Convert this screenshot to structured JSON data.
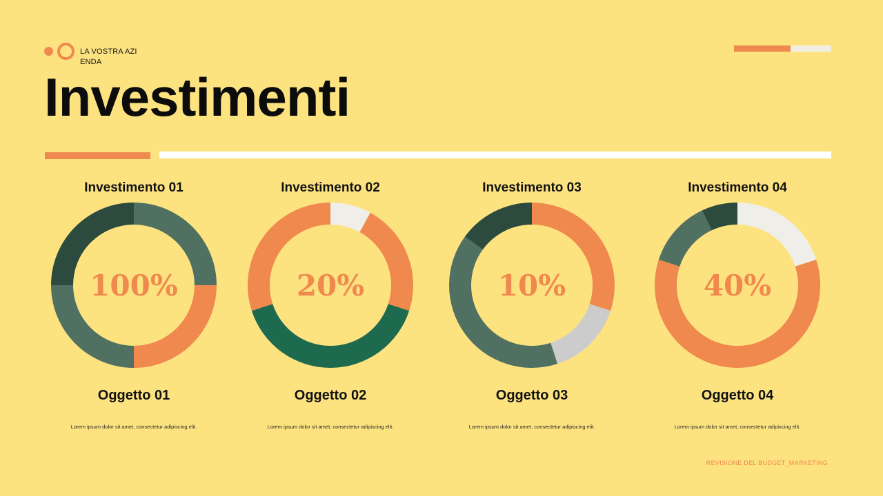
{
  "header": {
    "company": "LA VOSTRA AZIENDA",
    "title": "Investimenti"
  },
  "footer": {
    "text": "REVISIONE DEL BUDGET_MARKETING"
  },
  "colors": {
    "background": "#FDE380",
    "orange": "#F0894D",
    "dark_green": "#2D4A3E",
    "sage_green": "#507062",
    "emerald": "#1E6A4E",
    "light_gray": "#F0EEE8",
    "gray": "#CCCCCC"
  },
  "chart_data": [
    {
      "type": "pie",
      "title": "Investimento 01",
      "center_label": "100%",
      "item_label": "Oggetto 01",
      "description": "Lorem ipsum dolor sit amet, consectetur adipiscing elit.",
      "slices": [
        {
          "value": 25,
          "color": "#507062"
        },
        {
          "value": 25,
          "color": "#F0894D"
        },
        {
          "value": 25,
          "color": "#507062"
        },
        {
          "value": 25,
          "color": "#2D4A3E"
        }
      ]
    },
    {
      "type": "pie",
      "title": "Investimento 02",
      "center_label": "20%",
      "item_label": "Oggetto 02",
      "description": "Lorem ipsum dolor sit amet, consectetur adipiscing elit.",
      "slices": [
        {
          "value": 8,
          "color": "#F0EEE8"
        },
        {
          "value": 22,
          "color": "#F0894D"
        },
        {
          "value": 40,
          "color": "#1E6A4E"
        },
        {
          "value": 30,
          "color": "#F0894D"
        }
      ]
    },
    {
      "type": "pie",
      "title": "Investimento 03",
      "center_label": "10%",
      "item_label": "Oggetto 03",
      "description": "Lorem ipsum dolor sit amet, consectetur adipiscing elit.",
      "slices": [
        {
          "value": 30,
          "color": "#F0894D"
        },
        {
          "value": 15,
          "color": "#CCCCCC"
        },
        {
          "value": 40,
          "color": "#507062"
        },
        {
          "value": 15,
          "color": "#2D4A3E"
        }
      ]
    },
    {
      "type": "pie",
      "title": "Investimento 04",
      "center_label": "40%",
      "item_label": "Oggetto 04",
      "description": "Lorem ipsum dolor sit amet, consectetur adipiscing elit.",
      "slices": [
        {
          "value": 20,
          "color": "#F0EEE8"
        },
        {
          "value": 60,
          "color": "#F0894D"
        },
        {
          "value": 13,
          "color": "#507062"
        },
        {
          "value": 7,
          "color": "#2D4A3E"
        }
      ]
    }
  ]
}
